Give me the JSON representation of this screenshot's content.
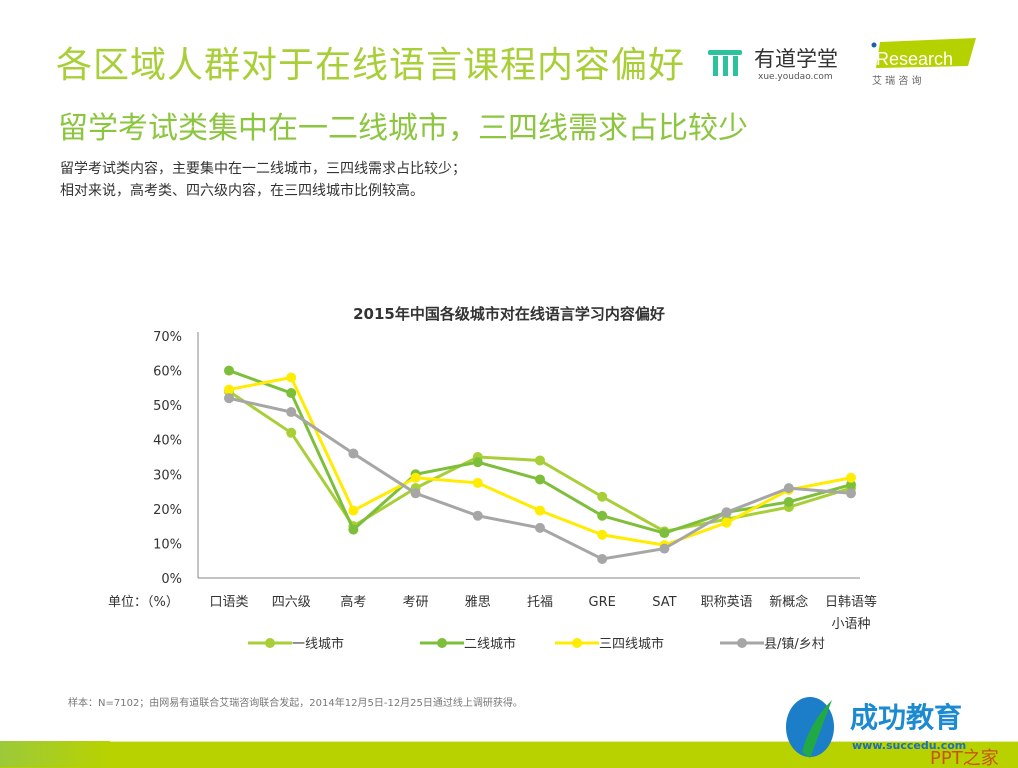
{
  "header": {
    "title": "各区域人群对于在线语言课程内容偏好",
    "subtitle": "留学考试类集中在一二线城市，三四线需求占比较少",
    "description": [
      "留学考试类内容，主要集中在一二线城市，三四线需求占比较少；",
      "相对来说，高考类、四六级内容，在三四线城市比例较高。"
    ]
  },
  "logos": {
    "youdao_name": "有道学堂",
    "youdao_url": "xue.youdao.com",
    "iresearch_name": "iResearch",
    "iresearch_cn": "艾 瑞 咨 询",
    "succedu_name": "成功教育",
    "succedu_url": "www.succedu.com",
    "watermark": "PPT之家"
  },
  "footnote": "样本：N=7102；由网易有道联合艾瑞咨询联合发起，2014年12月5日-12月25日通过线上调研获得。",
  "chart_data": {
    "type": "line",
    "title": "2015年中国各级城市对在线语言学习内容偏好",
    "ylabel": "单位：（%）",
    "categories": [
      "口语类",
      "四六级",
      "高考",
      "考研",
      "雅思",
      "托福",
      "GRE",
      "SAT",
      "职称英语",
      "新概念",
      "日韩语等小语种"
    ],
    "yticks": [
      "0%",
      "10%",
      "20%",
      "30%",
      "40%",
      "50%",
      "60%",
      "70%"
    ],
    "ylim": [
      0,
      70
    ],
    "grid": false,
    "legend_position": "bottom",
    "series": [
      {
        "name": "一线城市",
        "color": "#a8cf38",
        "values": [
          54,
          42,
          15,
          26,
          35,
          34,
          23.5,
          13.5,
          17,
          20.5,
          26
        ]
      },
      {
        "name": "二线城市",
        "color": "#7dbf3a",
        "values": [
          60,
          53.5,
          14,
          30,
          33.5,
          28.5,
          18,
          13,
          19,
          22,
          27
        ]
      },
      {
        "name": "三四线城市",
        "color": "#ffec00",
        "values": [
          54.5,
          58,
          19.5,
          29,
          27.5,
          19.5,
          12.5,
          9.5,
          16,
          25.5,
          29
        ]
      },
      {
        "name": "县/镇/乡村",
        "color": "#a6a6a6",
        "values": [
          52,
          48,
          36,
          24.5,
          18,
          14.5,
          5.5,
          8.5,
          19,
          26,
          24.5
        ]
      }
    ]
  }
}
